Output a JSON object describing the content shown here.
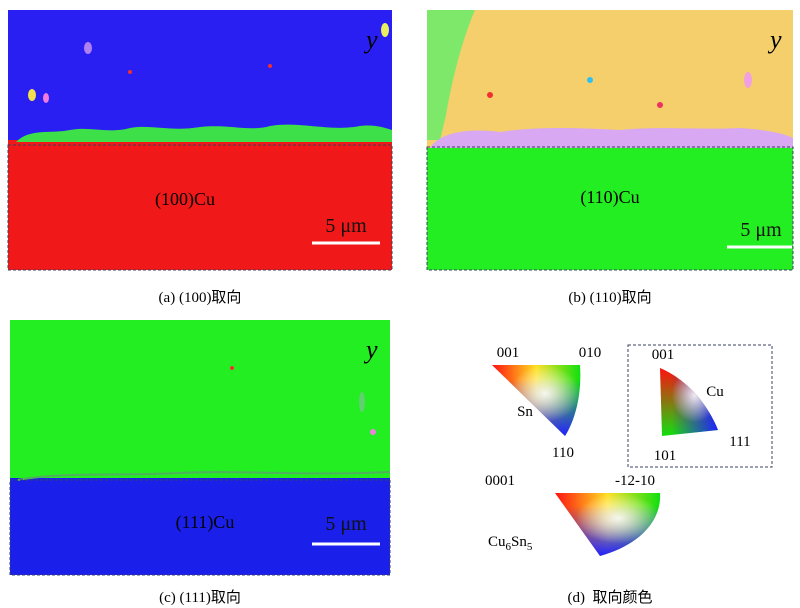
{
  "panels": [
    {
      "y_label": "y",
      "crystal": "(100)Cu",
      "scale_bar": "5 μm",
      "caption": "(a) (100)取向"
    },
    {
      "y_label": "y",
      "crystal": "(110)Cu",
      "scale_bar": "5 μm",
      "caption": "(b) (110)取向"
    },
    {
      "y_label": "y",
      "crystal": "(111)Cu",
      "scale_bar": "5 μm",
      "caption": "(c) (111)取向"
    }
  ],
  "legend": {
    "sn": {
      "label": "Sn",
      "corners": [
        "001",
        "010",
        "110"
      ]
    },
    "cu": {
      "label": "Cu",
      "corners": [
        "001",
        "101",
        "111"
      ]
    },
    "cu6sn5": {
      "label_parts": [
        "Cu",
        "6",
        "Sn",
        "5"
      ],
      "corners": [
        "0001",
        "-12-10"
      ]
    },
    "caption": "(d)  取向颜色"
  }
}
